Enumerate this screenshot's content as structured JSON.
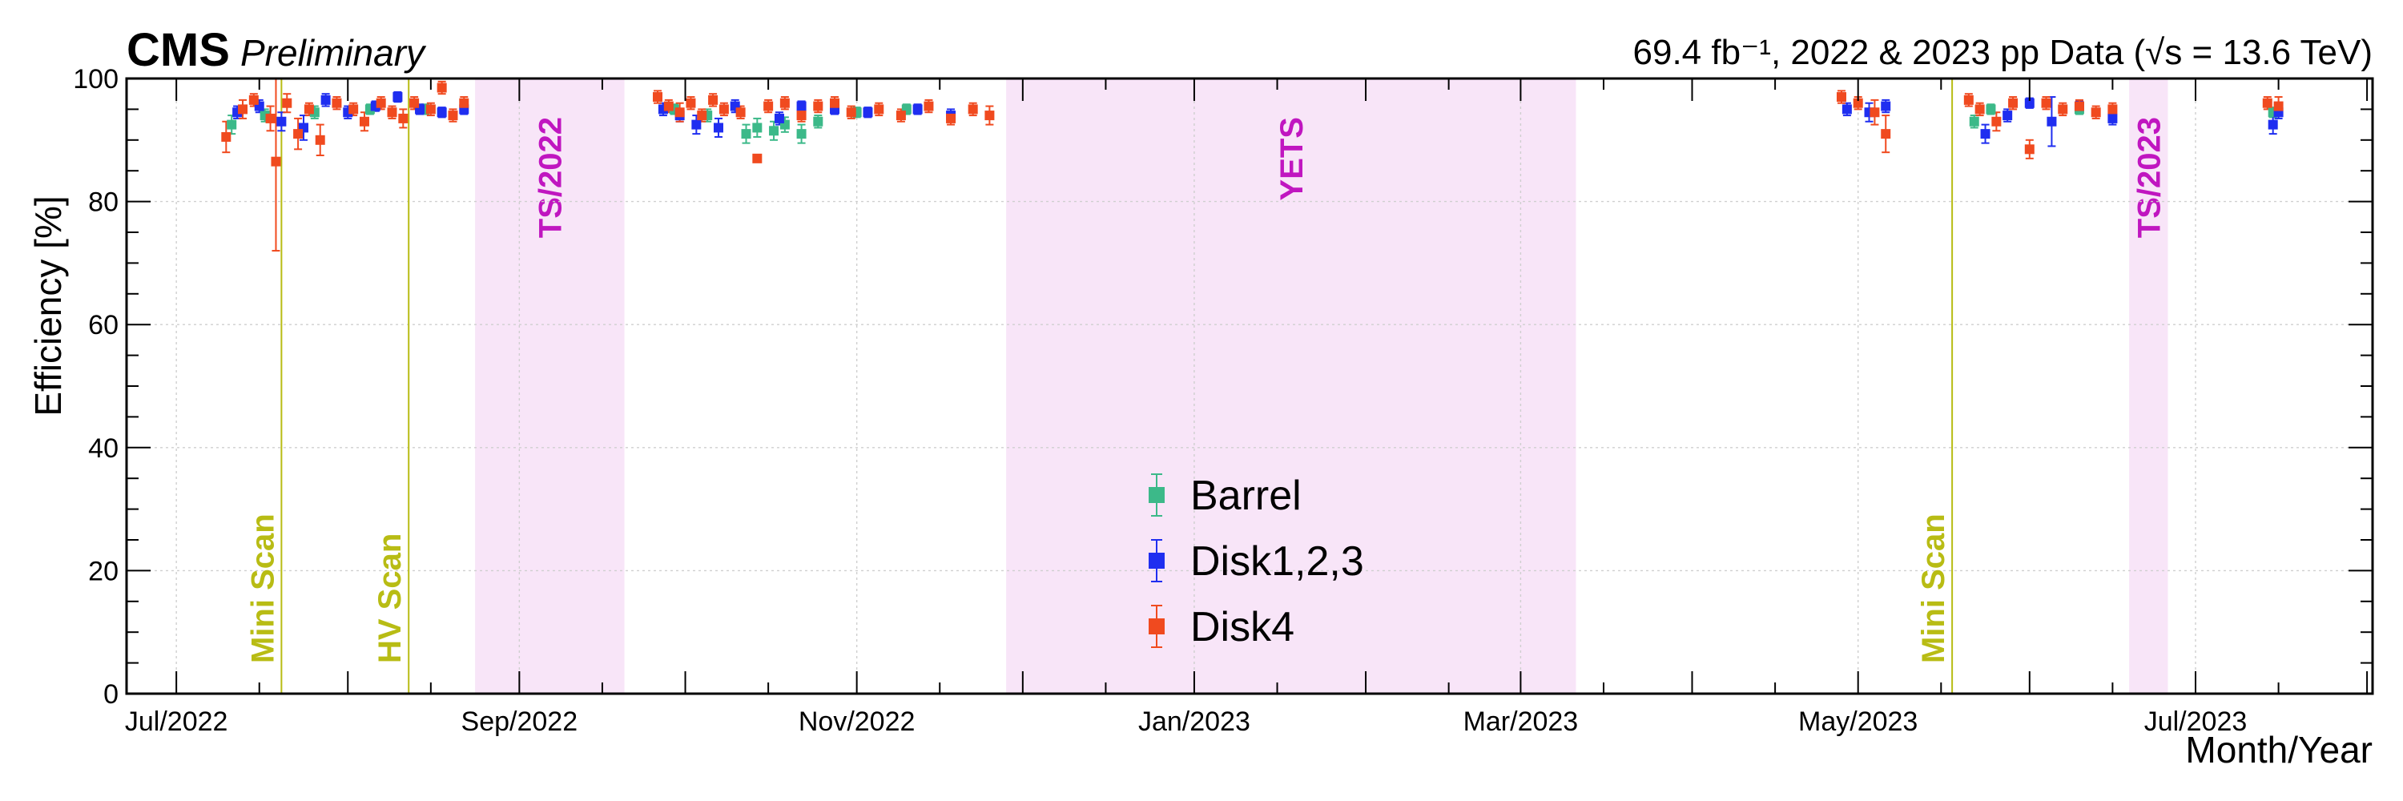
{
  "header": {
    "experiment": "CMS",
    "status": "Preliminary",
    "luminosity": "69.4 fb⁻¹, 2022 & 2023 pp Data (√s = 13.6 TeV)"
  },
  "chart_data": {
    "type": "scatter",
    "xlabel": "Month/Year",
    "ylabel": "Efficiency [%]",
    "ylim": [
      0,
      100
    ],
    "y_ticks": [
      0,
      20,
      40,
      60,
      80,
      100
    ],
    "xlim": [
      "2022-06-22",
      "2023-08-02"
    ],
    "x_ticks": [
      {
        "date": "2022-07-01",
        "label": "Jul/2022"
      },
      {
        "date": "2022-09-01",
        "label": "Sep/2022"
      },
      {
        "date": "2022-11-01",
        "label": "Nov/2022"
      },
      {
        "date": "2023-01-01",
        "label": "Jan/2023"
      },
      {
        "date": "2023-03-01",
        "label": "Mar/2023"
      },
      {
        "date": "2023-05-01",
        "label": "May/2023"
      },
      {
        "date": "2023-07-01",
        "label": "Jul/2023"
      }
    ],
    "grid": true,
    "legend_position": "center-bottom",
    "shaded_periods": [
      {
        "label": "TS/2022",
        "start": "2022-08-24",
        "end": "2022-09-20",
        "color": "#c016c0"
      },
      {
        "label": "YETS",
        "start": "2022-11-28",
        "end": "2023-03-11",
        "color": "#c016c0"
      },
      {
        "label": "TS/2023",
        "start": "2023-06-19",
        "end": "2023-06-26",
        "color": "#c016c0"
      }
    ],
    "markers": [
      {
        "label": "Mini Scan",
        "date": "2022-07-20",
        "color": "#b8bc14"
      },
      {
        "label": "HV Scan",
        "date": "2022-08-12",
        "color": "#b8bc14"
      },
      {
        "label": "Mini Scan",
        "date": "2023-05-18",
        "color": "#b8bc14"
      }
    ],
    "series": [
      {
        "name": "Barrel",
        "color": "#3cb989",
        "points": [
          [
            "2022-07-11",
            92.5,
            1.5
          ],
          [
            "2022-07-17",
            94.0,
            1.0
          ],
          [
            "2022-07-26",
            94.5,
            1.0
          ],
          [
            "2022-08-05",
            95.0,
            0.8
          ],
          [
            "2022-08-15",
            95.0,
            0.8
          ],
          [
            "2022-09-29",
            95.0,
            0.8
          ],
          [
            "2022-10-05",
            94.0,
            1.0
          ],
          [
            "2022-10-12",
            91.0,
            1.5
          ],
          [
            "2022-10-14",
            92.0,
            1.5
          ],
          [
            "2022-10-17",
            91.5,
            1.5
          ],
          [
            "2022-10-19",
            92.5,
            1.2
          ],
          [
            "2022-10-22",
            91.0,
            1.5
          ],
          [
            "2022-10-25",
            93.0,
            1.0
          ],
          [
            "2022-11-01",
            94.5,
            0.8
          ],
          [
            "2022-11-10",
            95.0,
            0.8
          ],
          [
            "2023-05-22",
            93.0,
            1.0
          ],
          [
            "2023-05-25",
            95.0,
            0.8
          ],
          [
            "2023-06-10",
            95.0,
            0.8
          ],
          [
            "2023-07-15",
            94.5,
            0.8
          ]
        ]
      },
      {
        "name": "Disk1,2,3",
        "color": "#1f2ef0",
        "points": [
          [
            "2022-07-12",
            94.5,
            1.0
          ],
          [
            "2022-07-16",
            95.5,
            1.0
          ],
          [
            "2022-07-20",
            93.0,
            1.5
          ],
          [
            "2022-07-24",
            92.0,
            2.0
          ],
          [
            "2022-07-28",
            96.5,
            1.0
          ],
          [
            "2022-08-01",
            94.5,
            1.0
          ],
          [
            "2022-08-06",
            95.5,
            0.8
          ],
          [
            "2022-08-10",
            97.0,
            0.8
          ],
          [
            "2022-08-14",
            95.0,
            0.8
          ],
          [
            "2022-08-18",
            94.5,
            0.8
          ],
          [
            "2022-08-22",
            95.0,
            0.8
          ],
          [
            "2022-09-27",
            95.0,
            1.0
          ],
          [
            "2022-09-30",
            94.0,
            1.0
          ],
          [
            "2022-10-03",
            92.5,
            1.5
          ],
          [
            "2022-10-07",
            92.0,
            1.5
          ],
          [
            "2022-10-10",
            95.5,
            1.0
          ],
          [
            "2022-10-18",
            93.5,
            1.0
          ],
          [
            "2022-10-22",
            95.5,
            0.8
          ],
          [
            "2022-10-28",
            95.0,
            0.8
          ],
          [
            "2022-11-03",
            94.5,
            0.8
          ],
          [
            "2022-11-12",
            95.0,
            0.8
          ],
          [
            "2022-11-18",
            94.0,
            1.0
          ],
          [
            "2023-04-29",
            95.0,
            1.0
          ],
          [
            "2023-05-03",
            94.5,
            1.5
          ],
          [
            "2023-05-06",
            95.5,
            1.0
          ],
          [
            "2023-05-24",
            91.0,
            1.5
          ],
          [
            "2023-05-28",
            94.0,
            1.0
          ],
          [
            "2023-06-01",
            96.0,
            0.8
          ],
          [
            "2023-06-05",
            93.0,
            4.0
          ],
          [
            "2023-06-10",
            95.5,
            0.8
          ],
          [
            "2023-06-16",
            93.5,
            1.0
          ],
          [
            "2023-07-15",
            92.5,
            1.5
          ],
          [
            "2023-07-16",
            94.5,
            1.0
          ]
        ]
      },
      {
        "name": "Disk4",
        "color": "#f04a1f",
        "points": [
          [
            "2022-07-10",
            90.5,
            2.5
          ],
          [
            "2022-07-13",
            95.0,
            1.5
          ],
          [
            "2022-07-15",
            96.5,
            1.0
          ],
          [
            "2022-07-18",
            93.5,
            2.0
          ],
          [
            "2022-07-19",
            86.5,
            14.5
          ],
          [
            "2022-07-21",
            96.0,
            1.5
          ],
          [
            "2022-07-23",
            91.0,
            2.5
          ],
          [
            "2022-07-25",
            95.0,
            1.0
          ],
          [
            "2022-07-27",
            90.0,
            2.5
          ],
          [
            "2022-07-30",
            96.0,
            1.0
          ],
          [
            "2022-08-02",
            95.0,
            1.0
          ],
          [
            "2022-08-04",
            93.0,
            1.5
          ],
          [
            "2022-08-07",
            96.0,
            1.0
          ],
          [
            "2022-08-09",
            94.5,
            1.0
          ],
          [
            "2022-08-11",
            93.5,
            1.5
          ],
          [
            "2022-08-13",
            96.0,
            1.0
          ],
          [
            "2022-08-16",
            95.0,
            1.0
          ],
          [
            "2022-08-18",
            98.5,
            1.0
          ],
          [
            "2022-08-20",
            94.0,
            1.0
          ],
          [
            "2022-08-22",
            96.0,
            1.0
          ],
          [
            "2022-09-26",
            97.0,
            1.0
          ],
          [
            "2022-09-28",
            95.5,
            1.0
          ],
          [
            "2022-09-30",
            94.5,
            1.5
          ],
          [
            "2022-10-02",
            96.0,
            1.0
          ],
          [
            "2022-10-04",
            94.0,
            1.0
          ],
          [
            "2022-10-06",
            96.5,
            1.0
          ],
          [
            "2022-10-08",
            95.0,
            1.0
          ],
          [
            "2022-10-11",
            94.5,
            1.0
          ],
          [
            "2022-10-14",
            87.0,
            0.5
          ],
          [
            "2022-10-16",
            95.5,
            1.0
          ],
          [
            "2022-10-19",
            96.0,
            1.0
          ],
          [
            "2022-10-22",
            94.0,
            1.0
          ],
          [
            "2022-10-25",
            95.5,
            1.0
          ],
          [
            "2022-10-28",
            96.0,
            1.0
          ],
          [
            "2022-10-31",
            94.5,
            1.0
          ],
          [
            "2022-11-05",
            95.0,
            1.0
          ],
          [
            "2022-11-09",
            94.0,
            1.0
          ],
          [
            "2022-11-14",
            95.5,
            1.0
          ],
          [
            "2022-11-18",
            93.5,
            1.0
          ],
          [
            "2022-11-22",
            95.0,
            1.0
          ],
          [
            "2022-11-25",
            94.0,
            1.5
          ],
          [
            "2023-04-28",
            97.0,
            1.0
          ],
          [
            "2023-05-01",
            96.0,
            1.0
          ],
          [
            "2023-05-04",
            94.5,
            2.0
          ],
          [
            "2023-05-06",
            91.0,
            3.0
          ],
          [
            "2023-05-21",
            96.5,
            1.0
          ],
          [
            "2023-05-23",
            95.0,
            1.0
          ],
          [
            "2023-05-26",
            93.0,
            1.5
          ],
          [
            "2023-05-29",
            96.0,
            1.0
          ],
          [
            "2023-06-01",
            88.5,
            1.5
          ],
          [
            "2023-06-04",
            96.0,
            1.0
          ],
          [
            "2023-06-07",
            95.0,
            1.0
          ],
          [
            "2023-06-10",
            95.5,
            1.0
          ],
          [
            "2023-06-13",
            94.5,
            1.0
          ],
          [
            "2023-06-16",
            95.0,
            1.0
          ],
          [
            "2023-07-14",
            96.0,
            1.0
          ],
          [
            "2023-07-16",
            95.5,
            1.5
          ]
        ]
      }
    ]
  }
}
